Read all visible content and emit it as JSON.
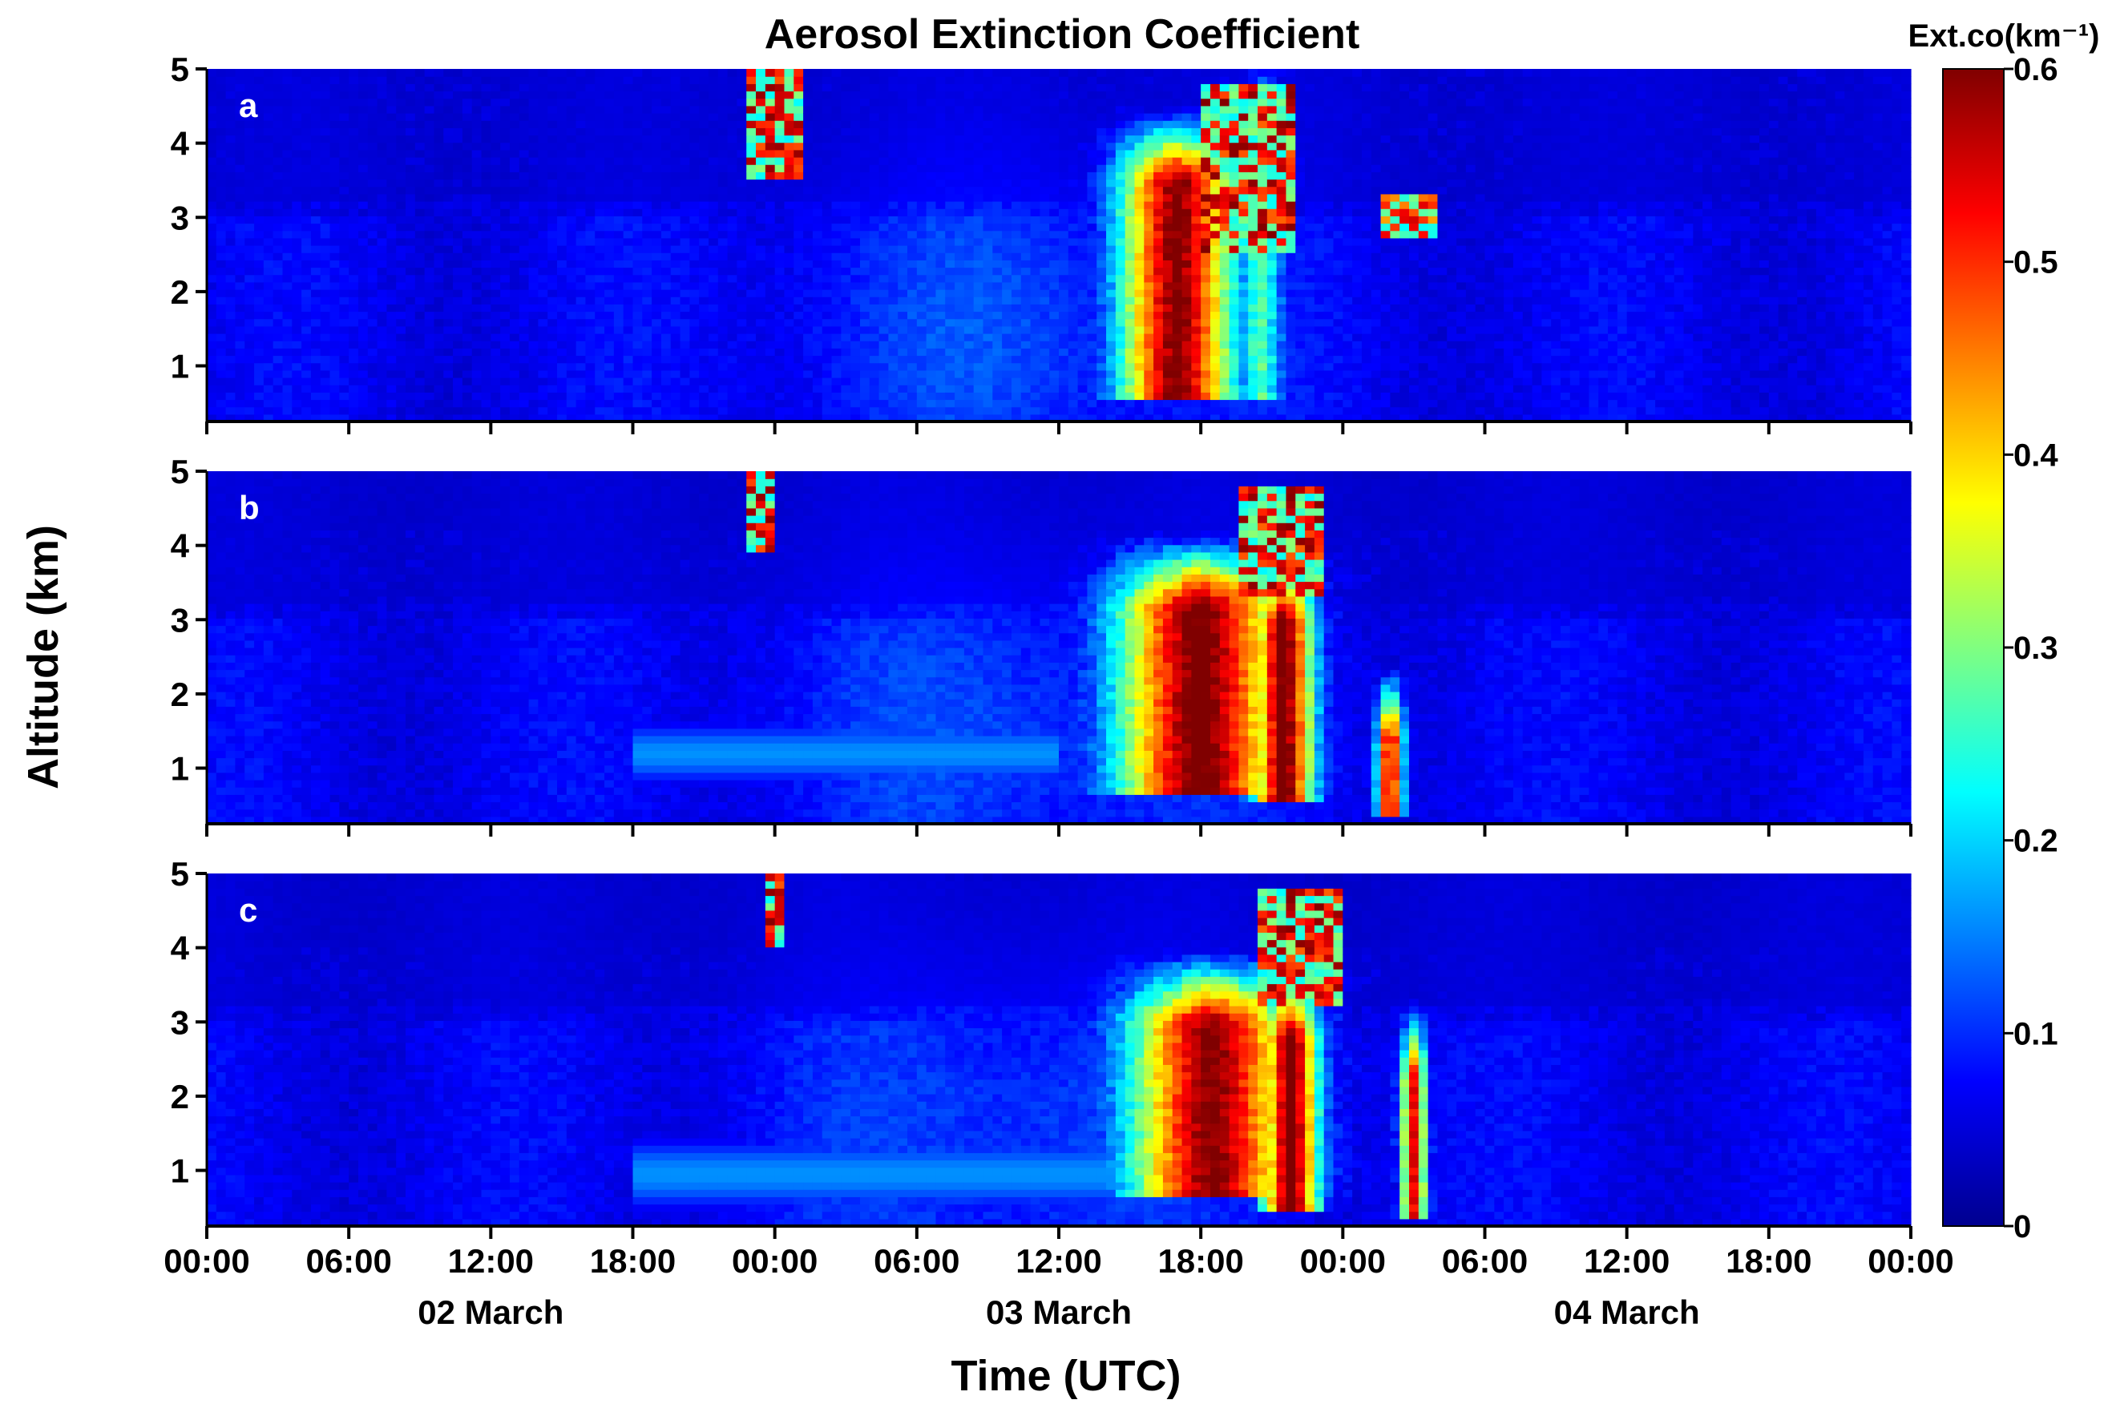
{
  "chart_data": {
    "type": "heatmap",
    "title": "Aerosol Extinction Coefficient",
    "ylabel": "Altitude (km)",
    "xlabel": "Time (UTC)",
    "colorbar": {
      "label": "Ext.co(km⁻¹)",
      "range": [
        0,
        0.6
      ],
      "tick_labels": [
        "0",
        "0.1",
        "0.2",
        "0.3",
        "0.4",
        "0.5",
        "0.6"
      ],
      "colormap": "jet",
      "stops": [
        "#00008f",
        "#0000ff",
        "#0080ff",
        "#00ffff",
        "#80ff80",
        "#ffff00",
        "#ff8000",
        "#ff0000",
        "#800000"
      ]
    },
    "x_tick_labels": [
      "00:00",
      "06:00",
      "12:00",
      "18:00",
      "00:00",
      "06:00",
      "12:00",
      "18:00",
      "00:00",
      "06:00",
      "12:00",
      "18:00",
      "00:00"
    ],
    "x_range_hours": [
      0,
      72
    ],
    "date_labels": [
      "02 March",
      "03 March",
      "04 March"
    ],
    "y_range_km": [
      0.25,
      5
    ],
    "y_tick_labels": [
      "1",
      "2",
      "3",
      "4",
      "5"
    ],
    "panels": [
      {
        "label": "a",
        "features": [
          {
            "kind": "cloud",
            "t0": 22.8,
            "t1": 25.0,
            "z0": 3.5,
            "z1": 5.0,
            "peak": 0.6
          },
          {
            "kind": "layer",
            "t": 41.0,
            "width": 4.5,
            "z_base": 0.5,
            "z_top": 3.5,
            "peak": 0.58
          },
          {
            "kind": "layer",
            "t": 44.5,
            "width": 1.8,
            "z_base": 0.5,
            "z_top": 4.2,
            "peak": 0.25
          },
          {
            "kind": "cloud",
            "t0": 42.0,
            "t1": 46.0,
            "z0": 2.5,
            "z1": 4.8,
            "peak": 0.6
          },
          {
            "kind": "cloud",
            "t0": 49.5,
            "t1": 52.0,
            "z0": 2.7,
            "z1": 3.3,
            "peak": 0.55
          }
        ]
      },
      {
        "label": "b",
        "features": [
          {
            "kind": "cloud",
            "t0": 23.0,
            "t1": 24.0,
            "z0": 3.9,
            "z1": 5.0,
            "peak": 0.6
          },
          {
            "kind": "layer",
            "t": 42.0,
            "width": 6.5,
            "z_base": 0.6,
            "z_top": 3.2,
            "peak": 0.6
          },
          {
            "kind": "layer",
            "t": 45.5,
            "width": 2.4,
            "z_base": 0.5,
            "z_top": 3.0,
            "peak": 0.6
          },
          {
            "kind": "layer",
            "t": 50.0,
            "width": 1.0,
            "z_base": 0.3,
            "z_top": 1.4,
            "peak": 0.55
          },
          {
            "kind": "cloud",
            "t0": 43.5,
            "t1": 47.0,
            "z0": 3.3,
            "z1": 4.8,
            "peak": 0.6
          },
          {
            "kind": "haze",
            "t0": 18.0,
            "t1": 36.0,
            "z0": 0.9,
            "z1": 1.5,
            "peak": 0.16
          }
        ]
      },
      {
        "label": "c",
        "features": [
          {
            "kind": "cloud",
            "t0": 23.8,
            "t1": 24.5,
            "z0": 4.0,
            "z1": 5.0,
            "peak": 0.6
          },
          {
            "kind": "layer",
            "t": 42.5,
            "width": 6.5,
            "z_base": 0.6,
            "z_top": 3.0,
            "peak": 0.58
          },
          {
            "kind": "layer",
            "t": 45.8,
            "width": 2.2,
            "z_base": 0.4,
            "z_top": 2.8,
            "peak": 0.6
          },
          {
            "kind": "layer",
            "t": 51.0,
            "width": 1.0,
            "z_base": 0.3,
            "z_top": 2.3,
            "peak": 0.5
          },
          {
            "kind": "cloud",
            "t0": 44.5,
            "t1": 48.0,
            "z0": 3.2,
            "z1": 4.8,
            "peak": 0.6
          },
          {
            "kind": "haze",
            "t0": 18.0,
            "t1": 40.0,
            "z0": 0.6,
            "z1": 1.3,
            "peak": 0.16
          }
        ]
      }
    ]
  }
}
